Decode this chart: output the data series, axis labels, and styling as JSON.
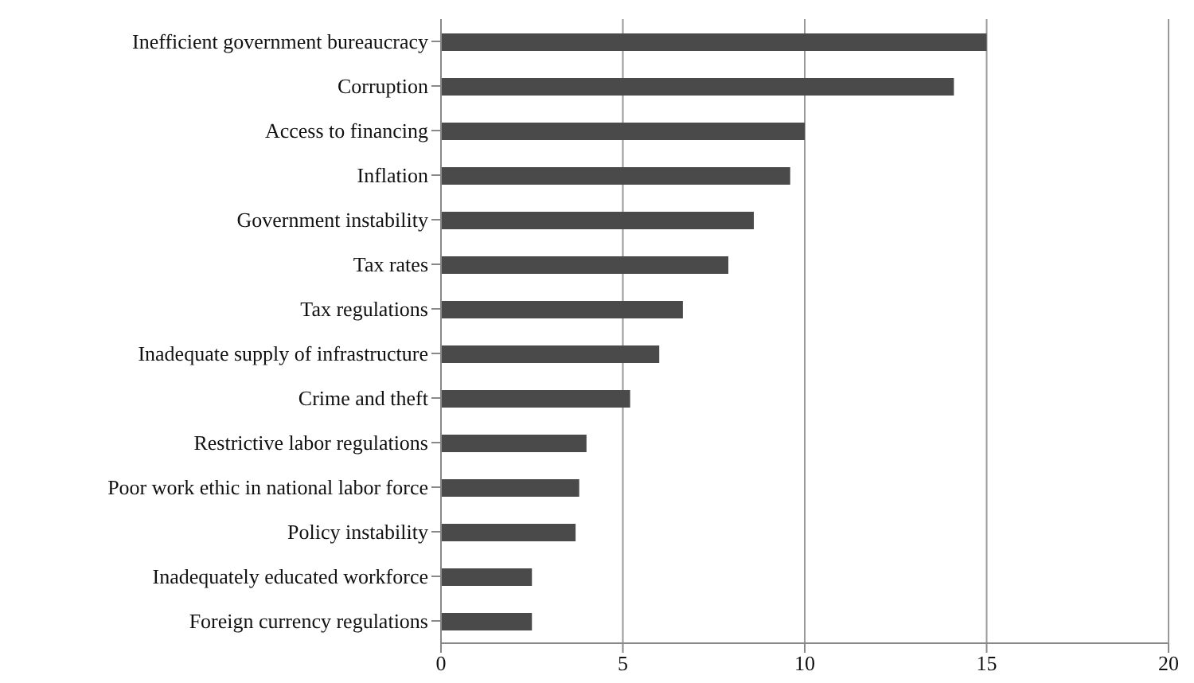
{
  "chart_data": {
    "type": "bar",
    "orientation": "horizontal",
    "categories": [
      "Inefficient government bureaucracy",
      "Corruption",
      "Access to financing",
      "Inflation",
      "Government instability",
      "Tax rates",
      "Tax regulations",
      "Inadequate supply of infrastructure",
      "Crime and theft",
      "Restrictive labor regulations",
      "Poor work ethic in national labor force",
      "Policy instability",
      "Inadequately educated workforce",
      "Foreign currency regulations"
    ],
    "values": [
      15.0,
      14.1,
      10.0,
      9.6,
      8.6,
      7.9,
      6.65,
      6.0,
      5.2,
      4.0,
      3.8,
      3.7,
      2.5,
      2.5
    ],
    "color": "#4a4a4a",
    "xlim": [
      0,
      20
    ],
    "xticks": [
      0,
      5,
      10,
      15,
      20
    ],
    "grid": "x"
  }
}
